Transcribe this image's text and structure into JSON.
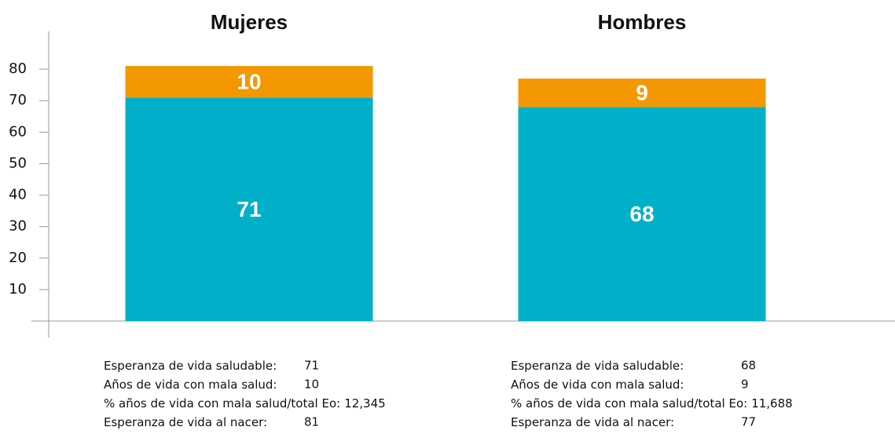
{
  "chart_data": {
    "type": "stacked_bar",
    "categories": [
      "Mujeres",
      "Hombres"
    ],
    "series": [
      {
        "color": "#00b0c8",
        "values": [
          71,
          68
        ]
      },
      {
        "color": "#f39800",
        "values": [
          10,
          9
        ]
      }
    ],
    "ylim": [
      0,
      92
    ],
    "yticks": [
      10,
      20,
      30,
      40,
      50,
      60,
      70,
      80
    ],
    "annotations": [
      [
        {
          "label": "Esperanza de vida saludable:",
          "value": "71"
        },
        {
          "label": "Años de vida con mala salud:",
          "value": "10"
        },
        {
          "label": "% años de vida con mala salud/total Eo:",
          "value": "12,345"
        },
        {
          "label": "Esperanza de vida al nacer:",
          "value": "81"
        }
      ],
      [
        {
          "label": "Esperanza de vida saludable:",
          "value": "68"
        },
        {
          "label": "Años de vida con mala salud:",
          "value": "9"
        },
        {
          "label": "% años de vida con mala salud/total Eo:",
          "value": "11,688"
        },
        {
          "label": "Esperanza de vida al nacer:",
          "value": "77"
        }
      ]
    ]
  }
}
